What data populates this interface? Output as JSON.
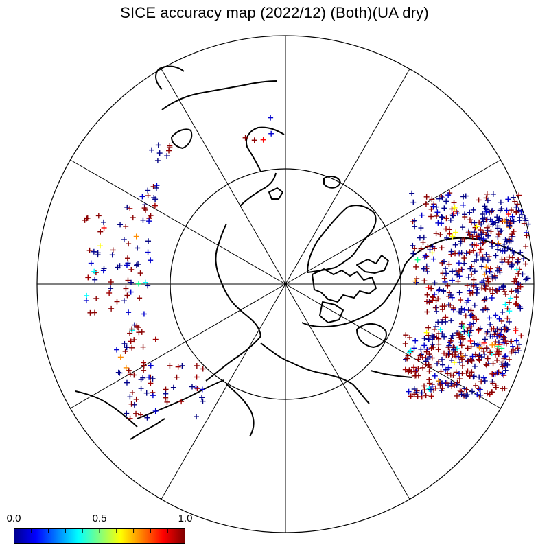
{
  "title": "SICE accuracy map (2022/12) (Both)(UA dry)",
  "colorbar": {
    "labels": [
      "0.0",
      "0.5",
      "1.0"
    ],
    "range": [
      0.0,
      1.0
    ],
    "colors": [
      "#00008f",
      "#0000ff",
      "#00ffff",
      "#ffff00",
      "#ff0000",
      "#800000"
    ]
  },
  "map": {
    "projection": "north polar stereographic",
    "meridian_lines": 12,
    "latitude_circles": 2,
    "coastline_color": "#000000",
    "dominant_marker_color": "#8b0000"
  }
}
